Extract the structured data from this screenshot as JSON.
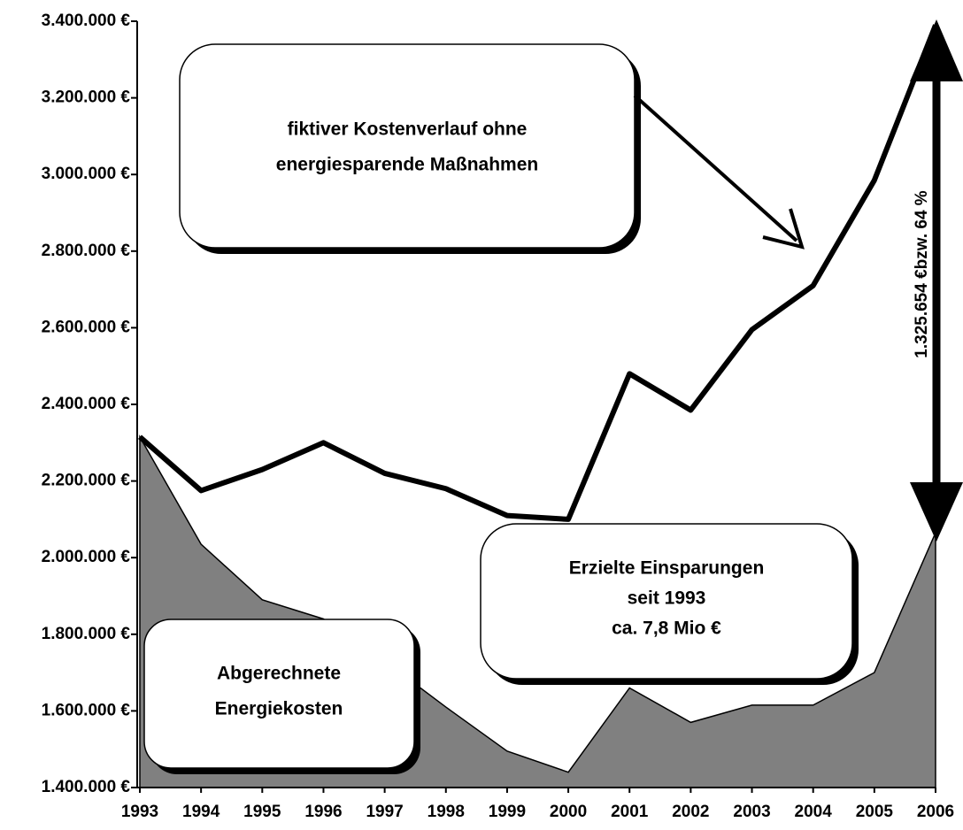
{
  "chart_data": {
    "type": "area_line",
    "x": [
      1993,
      1994,
      1995,
      1996,
      1997,
      1998,
      1999,
      2000,
      2001,
      2002,
      2003,
      2004,
      2005,
      2006
    ],
    "series": [
      {
        "name": "fiktiver Kostenverlauf ohne energiesparende Maßnahmen",
        "color": "#000000",
        "values": [
          2315000,
          2175000,
          2230000,
          2300000,
          2220000,
          2180000,
          2110000,
          2100000,
          2480000,
          2385000,
          2595000,
          2710000,
          2985000,
          3390000
        ]
      },
      {
        "name": "Abgerechnete Energiekosten",
        "color": "#808080",
        "values": [
          2315000,
          2035000,
          1890000,
          1840000,
          1730000,
          1610000,
          1495000,
          1440000,
          1660000,
          1570000,
          1615000,
          1615000,
          1700000,
          2065000
        ]
      }
    ],
    "xlim": [
      1993,
      2006
    ],
    "ylim": [
      1400000,
      3400000
    ],
    "yticks": [
      {
        "value": 1400000,
        "label": "1.400.000 €"
      },
      {
        "value": 1600000,
        "label": "1.600.000 €"
      },
      {
        "value": 1800000,
        "label": "1.800.000 €"
      },
      {
        "value": 2000000,
        "label": "2.000.000 €"
      },
      {
        "value": 2200000,
        "label": "2.200.000 €"
      },
      {
        "value": 2400000,
        "label": "2.400.000 €"
      },
      {
        "value": 2600000,
        "label": "2.600.000 €"
      },
      {
        "value": 2800000,
        "label": "2.800.000 €"
      },
      {
        "value": 3000000,
        "label": "3.000.000 €"
      },
      {
        "value": 3200000,
        "label": "3.200.000 €"
      },
      {
        "value": 3400000,
        "label": "3.400.000 €"
      }
    ],
    "annotations": [
      {
        "lines": [
          "fiktiver Kostenverlauf ohne",
          "energiesparende Maßnahmen"
        ]
      },
      {
        "lines": [
          "Erzielte Einsparungen",
          "seit 1993",
          "ca. 7,8 Mio €"
        ]
      },
      {
        "lines": [
          "Abgerechnete",
          "Energiekosten"
        ]
      },
      {
        "lines": [
          "1.325.654 €bzw. 64 %"
        ]
      }
    ]
  }
}
